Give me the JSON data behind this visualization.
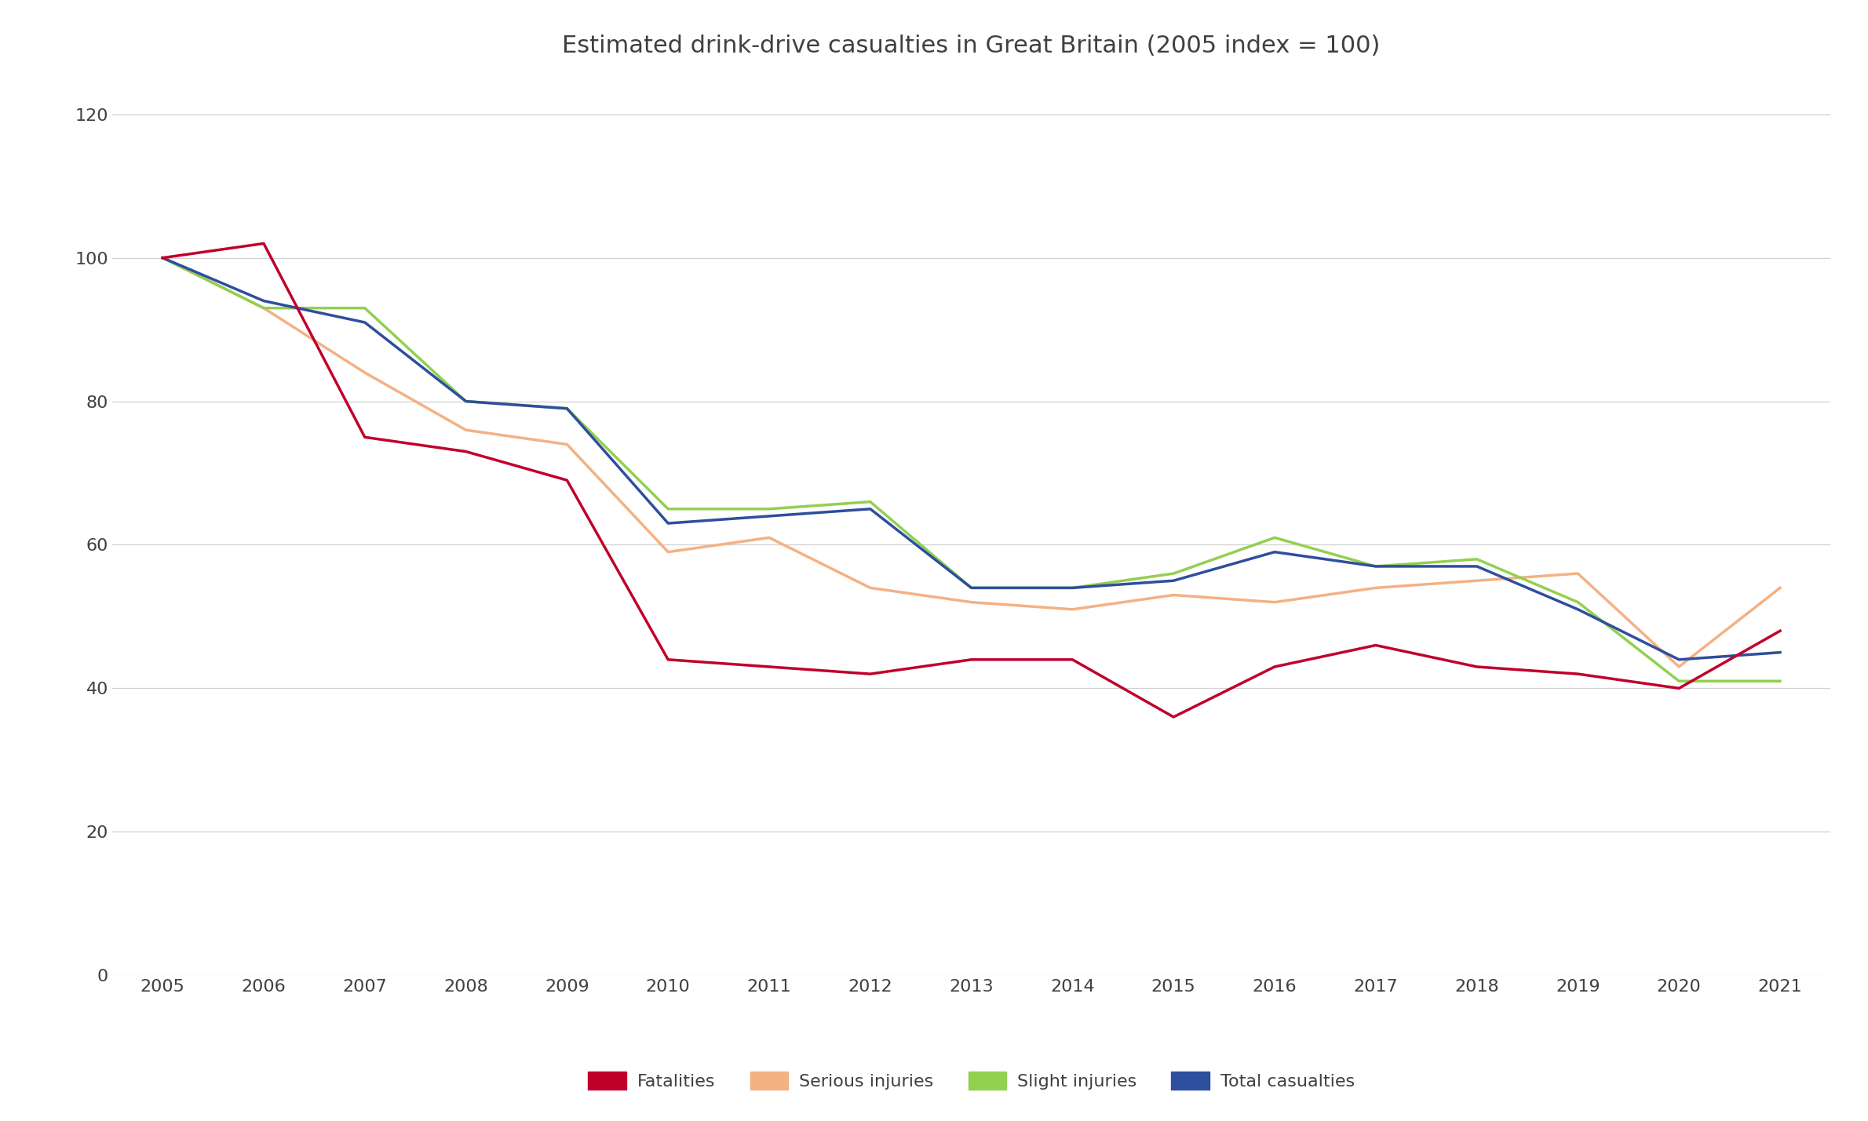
{
  "title": "Estimated drink-drive casualties in Great Britain (2005 index = 100)",
  "years": [
    2005,
    2006,
    2007,
    2008,
    2009,
    2010,
    2011,
    2012,
    2013,
    2014,
    2015,
    2016,
    2017,
    2018,
    2019,
    2020,
    2021
  ],
  "fatalities": [
    100,
    102,
    75,
    73,
    69,
    44,
    43,
    42,
    44,
    44,
    36,
    43,
    46,
    43,
    42,
    40,
    48
  ],
  "serious_injuries": [
    100,
    93,
    84,
    76,
    74,
    59,
    61,
    54,
    52,
    51,
    53,
    52,
    54,
    55,
    56,
    43,
    54
  ],
  "slight_injuries": [
    100,
    93,
    93,
    80,
    79,
    65,
    65,
    66,
    54,
    54,
    56,
    61,
    57,
    58,
    52,
    41,
    41
  ],
  "total_casualties": [
    100,
    94,
    91,
    80,
    79,
    63,
    64,
    65,
    54,
    54,
    55,
    59,
    57,
    57,
    51,
    44,
    45
  ],
  "series_colors": {
    "fatalities": "#c0002a",
    "serious_injuries": "#f4b183",
    "slight_injuries": "#92d050",
    "total_casualties": "#2e4e9e"
  },
  "legend_labels": {
    "fatalities": "Fatalities",
    "serious_injuries": "Serious injuries",
    "slight_injuries": "Slight injuries",
    "total_casualties": "Total casualties"
  },
  "ylim": [
    0,
    125
  ],
  "yticks": [
    0,
    20,
    40,
    60,
    80,
    100,
    120
  ],
  "background_color": "#ffffff",
  "grid_color": "#d0d0d0",
  "title_fontsize": 22,
  "tick_fontsize": 16,
  "legend_fontsize": 16,
  "line_width": 2.5
}
